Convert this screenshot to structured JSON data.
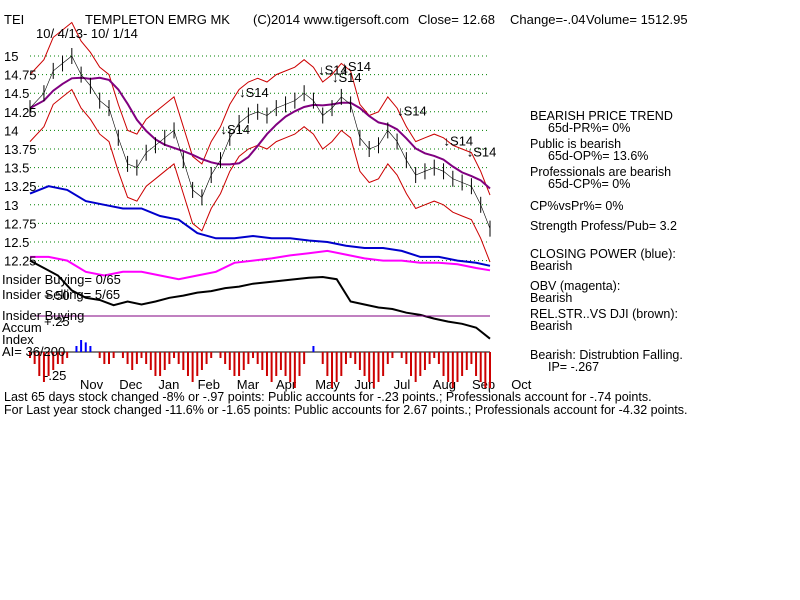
{
  "header": {
    "ticker": "TEI",
    "name": "TEMPLETON EMRG MK",
    "copyright": "(C)2014 www.tigersoft.com",
    "close": "Close=  12.68",
    "change": "Change=-.04",
    "volume": "Volume= 1512.95",
    "date_range": "10/ 4/13- 10/ 1/14"
  },
  "chart_data": {
    "type": "line",
    "price_ylim": [
      12.25,
      15.125
    ],
    "y_ticks": [
      "15",
      "14.75",
      "14.5",
      "14.25",
      "14",
      "13.75",
      "13.5",
      "13.25",
      "13",
      "12.75",
      "12.5",
      "12.25"
    ],
    "x_ticks": [
      "Nov",
      "Dec",
      "Jan",
      "Feb",
      "Mar",
      "Apr",
      "May",
      "Jun",
      "Jul",
      "Aug",
      "Sep",
      "Oct"
    ],
    "grid": true,
    "price_series": [
      [
        0,
        14.3
      ],
      [
        3,
        14.5
      ],
      [
        5,
        14.8
      ],
      [
        7,
        14.9
      ],
      [
        9,
        15.0
      ],
      [
        11,
        14.75
      ],
      [
        13,
        14.6
      ],
      [
        15,
        14.4
      ],
      [
        17,
        14.3
      ],
      [
        19,
        13.9
      ],
      [
        21,
        13.55
      ],
      [
        23,
        13.5
      ],
      [
        25,
        13.7
      ],
      [
        27,
        13.8
      ],
      [
        29,
        13.9
      ],
      [
        31,
        14.0
      ],
      [
        33,
        13.6
      ],
      [
        35,
        13.2
      ],
      [
        37,
        13.1
      ],
      [
        39,
        13.4
      ],
      [
        41,
        13.6
      ],
      [
        43,
        13.9
      ],
      [
        45,
        14.1
      ],
      [
        47,
        14.2
      ],
      [
        49,
        14.25
      ],
      [
        51,
        14.2
      ],
      [
        53,
        14.3
      ],
      [
        55,
        14.35
      ],
      [
        57,
        14.4
      ],
      [
        59,
        14.5
      ],
      [
        61,
        14.4
      ],
      [
        63,
        14.2
      ],
      [
        65,
        14.3
      ],
      [
        67,
        14.45
      ],
      [
        69,
        14.35
      ],
      [
        71,
        13.9
      ],
      [
        73,
        13.75
      ],
      [
        75,
        13.8
      ],
      [
        77,
        14.0
      ],
      [
        79,
        13.85
      ],
      [
        81,
        13.6
      ],
      [
        83,
        13.4
      ],
      [
        85,
        13.45
      ],
      [
        87,
        13.5
      ],
      [
        89,
        13.45
      ],
      [
        91,
        13.35
      ],
      [
        93,
        13.3
      ],
      [
        95,
        13.25
      ],
      [
        97,
        13.0
      ],
      [
        99,
        12.68
      ]
    ],
    "cp_series": [
      [
        0,
        13.15
      ],
      [
        4,
        13.25
      ],
      [
        8,
        13.2
      ],
      [
        12,
        13.05
      ],
      [
        16,
        13.0
      ],
      [
        20,
        12.95
      ],
      [
        24,
        12.95
      ],
      [
        28,
        12.85
      ],
      [
        32,
        12.8
      ],
      [
        36,
        12.62
      ],
      [
        40,
        12.55
      ],
      [
        44,
        12.55
      ],
      [
        48,
        12.58
      ],
      [
        52,
        12.55
      ],
      [
        56,
        12.55
      ],
      [
        60,
        12.52
      ],
      [
        64,
        12.5
      ],
      [
        68,
        12.45
      ],
      [
        72,
        12.42
      ],
      [
        76,
        12.42
      ],
      [
        80,
        12.38
      ],
      [
        84,
        12.3
      ],
      [
        88,
        12.3
      ],
      [
        92,
        12.25
      ],
      [
        96,
        12.22
      ],
      [
        99,
        12.18
      ]
    ],
    "obv_series": [
      [
        0,
        12.3
      ],
      [
        4,
        12.3
      ],
      [
        8,
        12.25
      ],
      [
        12,
        12.1
      ],
      [
        16,
        12.05
      ],
      [
        20,
        12.1
      ],
      [
        24,
        12.1
      ],
      [
        28,
        12.05
      ],
      [
        32,
        12.0
      ],
      [
        36,
        12.05
      ],
      [
        40,
        12.1
      ],
      [
        44,
        12.22
      ],
      [
        48,
        12.25
      ],
      [
        52,
        12.28
      ],
      [
        56,
        12.32
      ],
      [
        60,
        12.35
      ],
      [
        64,
        12.38
      ],
      [
        68,
        12.33
      ],
      [
        72,
        12.28
      ],
      [
        76,
        12.25
      ],
      [
        80,
        12.25
      ],
      [
        84,
        12.22
      ],
      [
        88,
        12.22
      ],
      [
        92,
        12.2
      ],
      [
        96,
        12.15
      ],
      [
        99,
        12.12
      ]
    ],
    "relstr_series": [
      [
        0,
        12.25
      ],
      [
        3,
        12.15
      ],
      [
        6,
        12.05
      ],
      [
        9,
        11.85
      ],
      [
        12,
        11.75
      ],
      [
        15,
        11.72
      ],
      [
        18,
        11.65
      ],
      [
        21,
        11.7
      ],
      [
        24,
        11.66
      ],
      [
        27,
        11.7
      ],
      [
        30,
        11.75
      ],
      [
        33,
        11.78
      ],
      [
        36,
        11.82
      ],
      [
        39,
        11.84
      ],
      [
        42,
        11.88
      ],
      [
        45,
        11.9
      ],
      [
        48,
        11.94
      ],
      [
        51,
        11.96
      ],
      [
        54,
        11.98
      ],
      [
        57,
        12.0
      ],
      [
        60,
        12.02
      ],
      [
        63,
        12.03
      ],
      [
        66,
        12.0
      ],
      [
        69,
        11.7
      ],
      [
        72,
        11.66
      ],
      [
        75,
        11.62
      ],
      [
        78,
        11.6
      ],
      [
        81,
        11.55
      ],
      [
        84,
        11.52
      ],
      [
        87,
        11.47
      ],
      [
        90,
        11.43
      ],
      [
        93,
        11.4
      ],
      [
        96,
        11.35
      ],
      [
        99,
        11.2
      ]
    ],
    "signals": [
      {
        "x": 41,
        "label": "S14"
      },
      {
        "x": 45,
        "label": "S14"
      },
      {
        "x": 62,
        "label": "S14"
      },
      {
        "x": 65,
        "label": "S14"
      },
      {
        "x": 67,
        "label": "S14"
      },
      {
        "x": 79,
        "label": "S14"
      },
      {
        "x": 89,
        "label": "S14"
      },
      {
        "x": 94,
        "label": "S14"
      }
    ],
    "accum_index": {
      "label": "Accum",
      "label2": "Index",
      "ai": "AI= 36/200",
      "ticks": [
        "+.25",
        "-.25",
        "+.50"
      ],
      "values": [
        -0.05,
        -0.1,
        -0.2,
        -0.25,
        -0.2,
        -0.15,
        -0.1,
        -0.1,
        -0.05,
        0.0,
        0.05,
        0.1,
        0.08,
        0.05,
        0.0,
        -0.05,
        -0.1,
        -0.1,
        -0.05,
        0.0,
        -0.05,
        -0.1,
        -0.15,
        -0.1,
        -0.05,
        -0.1,
        -0.15,
        -0.2,
        -0.2,
        -0.15,
        -0.1,
        -0.05,
        -0.1,
        -0.15,
        -0.2,
        -0.25,
        -0.2,
        -0.15,
        -0.1,
        -0.05,
        0.0,
        -0.05,
        -0.1,
        -0.15,
        -0.2,
        -0.2,
        -0.15,
        -0.1,
        -0.05,
        -0.1,
        -0.15,
        -0.2,
        -0.25,
        -0.2,
        -0.15,
        -0.2,
        -0.25,
        -0.3,
        -0.2,
        -0.1,
        0.0,
        0.05,
        0.0,
        -0.1,
        -0.2,
        -0.3,
        -0.25,
        -0.2,
        -0.1,
        -0.05,
        -0.1,
        -0.15,
        -0.2,
        -0.25,
        -0.3,
        -0.25,
        -0.2,
        -0.1,
        -0.05,
        0.0,
        -0.05,
        -0.1,
        -0.2,
        -0.25,
        -0.2,
        -0.15,
        -0.1,
        -0.05,
        -0.1,
        -0.2,
        -0.25,
        -0.3,
        -0.25,
        -0.2,
        -0.15,
        -0.1,
        -0.2,
        -0.25,
        -0.3,
        -0.3
      ]
    }
  },
  "left_labels": {
    "insider_buying_count": "Insider Buying= 0/65",
    "insider_selling": "Insider Selling= 5/65",
    "insider_buying": "Insider Buying",
    "zero_pos": "+.50",
    "ticks": [
      "+.25",
      "-.25",
      "+.50"
    ]
  },
  "side_panel": {
    "title": "BEARISH PRICE TREND",
    "pr": "65d-PR%= 0%",
    "public": "Public is bearish",
    "op": "65d-OP%= 13.6%",
    "pros": "Professionals are bearish",
    "cp": "65d-CP%= 0%",
    "cpvspr": "CP%vsPr%=  0%",
    "strength": "Strength Profess/Pub= 3.2",
    "closing_power": "CLOSING POWER (blue):",
    "closing_power_v": "Bearish",
    "obv": "OBV (magenta):",
    "obv_v": "Bearish",
    "relstr": "REL.STR..VS DJI (brown):",
    "relstr_v": "Bearish",
    "dist": "Bearish: Distrubtion Falling.",
    "ip": "IP= -.267"
  },
  "footer": {
    "line1": "Last 65 days stock changed -8% or -.97 points:  Public accounts for -.23 points.;  Professionals account for -.74 points.",
    "line2": "For Last year stock changed -11.6% or -1.65 points:  Public accounts for  2.67 points.;  Professionals account for -4.32 points.",
    "overlap": "16004"
  },
  "colors": {
    "price": "#000000",
    "cp": "#0000cc",
    "obv": "#ff00ff",
    "band": "#cc0000",
    "ma": "#800080",
    "grid": "#008000",
    "accum_pos": "#0000ff",
    "accum_neg": "#cc0000"
  }
}
